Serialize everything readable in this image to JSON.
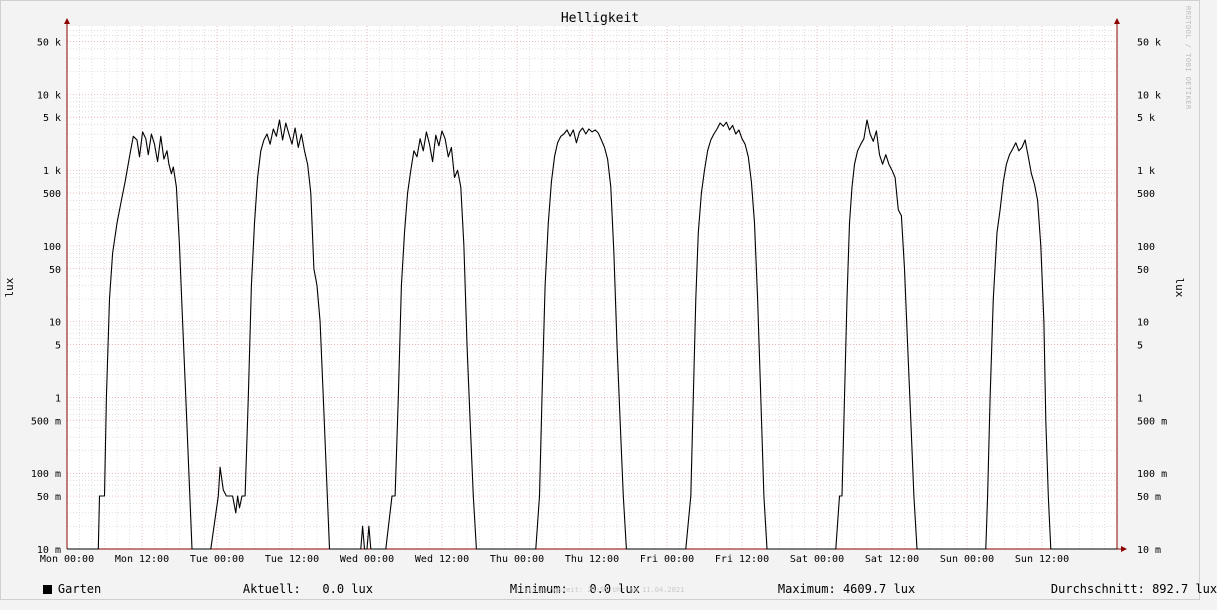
{
  "title": "Helligkeit",
  "watermark": "RRDTOOL / TOBI OETIKER",
  "ylabel_left": "lux",
  "ylabel_right": "lux",
  "legend": {
    "series_name": "Garten",
    "current_label": "Aktuell:",
    "current_value": "0.0 lux",
    "min_label": "Minimum:",
    "min_value": "0.0 lux",
    "max_label": "Maximum:",
    "max_value": "4609.7 lux",
    "avg_label": "Durchschnitt:",
    "avg_value": "892.7 lux"
  },
  "footer": "Erstellungszeit: 23:55 Uhr am 11.04.2021",
  "colors": {
    "line": "#000000",
    "grid_major": "#e8a0a0",
    "grid_minor": "#cccccc",
    "plot_bg": "#ffffff",
    "axis": "#8b0000"
  },
  "chart_data": {
    "type": "line",
    "title": "Helligkeit",
    "ylabel": "lux",
    "yscale": "log",
    "ylim": [
      0.01,
      80000
    ],
    "xlim_hours": [
      0,
      168
    ],
    "y_ticks": [
      {
        "value": 50000,
        "label": "50 k"
      },
      {
        "value": 10000,
        "label": "10 k"
      },
      {
        "value": 5000,
        "label": "5 k"
      },
      {
        "value": 1000,
        "label": "1 k"
      },
      {
        "value": 500,
        "label": "500"
      },
      {
        "value": 100,
        "label": "100"
      },
      {
        "value": 50,
        "label": "50"
      },
      {
        "value": 10,
        "label": "10"
      },
      {
        "value": 5,
        "label": "5"
      },
      {
        "value": 1,
        "label": "1"
      },
      {
        "value": 0.5,
        "label": "500 m"
      },
      {
        "value": 0.1,
        "label": "100 m"
      },
      {
        "value": 0.05,
        "label": "50 m"
      },
      {
        "value": 0.01,
        "label": "10 m"
      }
    ],
    "x_ticks": [
      {
        "hour": 0,
        "label": "Mon 00:00"
      },
      {
        "hour": 12,
        "label": "Mon 12:00"
      },
      {
        "hour": 24,
        "label": "Tue 00:00"
      },
      {
        "hour": 36,
        "label": "Tue 12:00"
      },
      {
        "hour": 48,
        "label": "Wed 00:00"
      },
      {
        "hour": 60,
        "label": "Wed 12:00"
      },
      {
        "hour": 72,
        "label": "Thu 00:00"
      },
      {
        "hour": 84,
        "label": "Thu 12:00"
      },
      {
        "hour": 96,
        "label": "Fri 00:00"
      },
      {
        "hour": 108,
        "label": "Fri 12:00"
      },
      {
        "hour": 120,
        "label": "Sat 00:00"
      },
      {
        "hour": 132,
        "label": "Sat 12:00"
      },
      {
        "hour": 144,
        "label": "Sun 00:00"
      },
      {
        "hour": 156,
        "label": "Sun 12:00"
      }
    ],
    "series": [
      {
        "name": "Garten",
        "points": [
          [
            0,
            0.01
          ],
          [
            5,
            0.01
          ],
          [
            5.2,
            0.05
          ],
          [
            6,
            0.05
          ],
          [
            6.3,
            1
          ],
          [
            6.8,
            20
          ],
          [
            7.3,
            80
          ],
          [
            8,
            200
          ],
          [
            8.7,
            400
          ],
          [
            9.3,
            700
          ],
          [
            10,
            1500
          ],
          [
            10.6,
            2800
          ],
          [
            11.2,
            2500
          ],
          [
            11.6,
            1500
          ],
          [
            12.1,
            3200
          ],
          [
            12.6,
            2600
          ],
          [
            13,
            1600
          ],
          [
            13.5,
            3000
          ],
          [
            14,
            2200
          ],
          [
            14.5,
            1300
          ],
          [
            15,
            2800
          ],
          [
            15.5,
            1400
          ],
          [
            16,
            1800
          ],
          [
            16.3,
            1200
          ],
          [
            16.7,
            900
          ],
          [
            17,
            1100
          ],
          [
            17.5,
            600
          ],
          [
            18,
            100
          ],
          [
            18.5,
            10
          ],
          [
            19,
            1
          ],
          [
            19.5,
            0.1
          ],
          [
            20,
            0.01
          ],
          [
            23,
            0.01
          ],
          [
            24.2,
            0.05
          ],
          [
            24.5,
            0.12
          ],
          [
            25,
            0.06
          ],
          [
            25.5,
            0.05
          ],
          [
            26.5,
            0.05
          ],
          [
            27,
            0.03
          ],
          [
            27.3,
            0.05
          ],
          [
            27.6,
            0.035
          ],
          [
            28,
            0.05
          ],
          [
            28.5,
            0.05
          ],
          [
            29,
            1
          ],
          [
            29.5,
            30
          ],
          [
            30,
            200
          ],
          [
            30.5,
            800
          ],
          [
            31,
            1800
          ],
          [
            31.5,
            2500
          ],
          [
            32,
            3000
          ],
          [
            32.5,
            2200
          ],
          [
            33,
            3500
          ],
          [
            33.5,
            2800
          ],
          [
            34,
            4600
          ],
          [
            34.5,
            2500
          ],
          [
            35,
            4200
          ],
          [
            35.5,
            3000
          ],
          [
            36,
            2200
          ],
          [
            36.5,
            3600
          ],
          [
            37,
            2000
          ],
          [
            37.5,
            3000
          ],
          [
            38,
            1800
          ],
          [
            38.5,
            1200
          ],
          [
            39,
            500
          ],
          [
            39.5,
            50
          ],
          [
            40,
            30
          ],
          [
            40.5,
            10
          ],
          [
            41,
            1
          ],
          [
            42,
            0.01
          ],
          [
            47,
            0.01
          ],
          [
            47.3,
            0.02
          ],
          [
            47.6,
            0.01
          ],
          [
            48,
            0.01
          ],
          [
            48.3,
            0.02
          ],
          [
            48.6,
            0.01
          ],
          [
            51,
            0.01
          ],
          [
            52,
            0.05
          ],
          [
            52.5,
            0.05
          ],
          [
            53,
            1
          ],
          [
            53.5,
            30
          ],
          [
            54,
            150
          ],
          [
            54.5,
            500
          ],
          [
            55,
            1000
          ],
          [
            55.5,
            1800
          ],
          [
            56,
            1500
          ],
          [
            56.5,
            2600
          ],
          [
            57,
            1800
          ],
          [
            57.5,
            3200
          ],
          [
            58,
            2200
          ],
          [
            58.5,
            1300
          ],
          [
            59,
            2900
          ],
          [
            59.5,
            2100
          ],
          [
            60,
            3300
          ],
          [
            60.5,
            2600
          ],
          [
            61,
            1500
          ],
          [
            61.5,
            2000
          ],
          [
            62,
            800
          ],
          [
            62.5,
            1000
          ],
          [
            63,
            600
          ],
          [
            63.5,
            100
          ],
          [
            64,
            5
          ],
          [
            64.5,
            0.5
          ],
          [
            65,
            0.05
          ],
          [
            65.5,
            0.01
          ],
          [
            75,
            0.01
          ],
          [
            75.6,
            0.05
          ],
          [
            76,
            1
          ],
          [
            76.5,
            30
          ],
          [
            77,
            200
          ],
          [
            77.5,
            700
          ],
          [
            78,
            1500
          ],
          [
            78.5,
            2300
          ],
          [
            79,
            2800
          ],
          [
            79.5,
            3000
          ],
          [
            80,
            3400
          ],
          [
            80.5,
            2800
          ],
          [
            81,
            3400
          ],
          [
            81.5,
            2300
          ],
          [
            82,
            3200
          ],
          [
            82.5,
            3600
          ],
          [
            83,
            3000
          ],
          [
            83.5,
            3500
          ],
          [
            84,
            3200
          ],
          [
            84.5,
            3400
          ],
          [
            85,
            3100
          ],
          [
            85.5,
            2500
          ],
          [
            86,
            2000
          ],
          [
            86.5,
            1400
          ],
          [
            87,
            600
          ],
          [
            87.5,
            80
          ],
          [
            88,
            5
          ],
          [
            88.5,
            0.5
          ],
          [
            89,
            0.05
          ],
          [
            89.5,
            0.01
          ],
          [
            99,
            0.01
          ],
          [
            99.8,
            0.05
          ],
          [
            100.2,
            1
          ],
          [
            100.6,
            20
          ],
          [
            101,
            150
          ],
          [
            101.5,
            500
          ],
          [
            102,
            1000
          ],
          [
            102.5,
            1800
          ],
          [
            103,
            2500
          ],
          [
            103.5,
            3000
          ],
          [
            104,
            3500
          ],
          [
            104.5,
            4200
          ],
          [
            105,
            3800
          ],
          [
            105.5,
            4300
          ],
          [
            106,
            3400
          ],
          [
            106.5,
            3900
          ],
          [
            107,
            3000
          ],
          [
            107.5,
            3400
          ],
          [
            108,
            2600
          ],
          [
            108.5,
            2200
          ],
          [
            109,
            1500
          ],
          [
            109.5,
            700
          ],
          [
            110,
            200
          ],
          [
            110.5,
            20
          ],
          [
            111,
            1
          ],
          [
            111.5,
            0.05
          ],
          [
            112,
            0.01
          ],
          [
            123,
            0.01
          ],
          [
            123.6,
            0.05
          ],
          [
            124,
            0.05
          ],
          [
            124.4,
            1
          ],
          [
            124.8,
            20
          ],
          [
            125.2,
            200
          ],
          [
            125.6,
            600
          ],
          [
            126,
            1200
          ],
          [
            126.5,
            1800
          ],
          [
            127,
            2200
          ],
          [
            127.5,
            2600
          ],
          [
            128,
            4600
          ],
          [
            128.5,
            3000
          ],
          [
            129,
            2400
          ],
          [
            129.5,
            3300
          ],
          [
            130,
            1600
          ],
          [
            130.5,
            1200
          ],
          [
            131,
            1600
          ],
          [
            131.5,
            1200
          ],
          [
            132,
            1000
          ],
          [
            132.5,
            800
          ],
          [
            133,
            300
          ],
          [
            133.5,
            250
          ],
          [
            134,
            50
          ],
          [
            134.5,
            5
          ],
          [
            135,
            0.5
          ],
          [
            135.5,
            0.05
          ],
          [
            136,
            0.01
          ],
          [
            147,
            0.01
          ],
          [
            147.3,
            0.05
          ],
          [
            147.7,
            1
          ],
          [
            148.2,
            20
          ],
          [
            148.8,
            150
          ],
          [
            149.3,
            300
          ],
          [
            149.8,
            700
          ],
          [
            150.3,
            1200
          ],
          [
            150.8,
            1600
          ],
          [
            151.3,
            1900
          ],
          [
            151.8,
            2300
          ],
          [
            152.3,
            1800
          ],
          [
            152.8,
            2000
          ],
          [
            153.3,
            2500
          ],
          [
            153.8,
            1500
          ],
          [
            154.3,
            900
          ],
          [
            154.8,
            650
          ],
          [
            155.3,
            400
          ],
          [
            155.8,
            100
          ],
          [
            156.3,
            10
          ],
          [
            156.6,
            0.5
          ],
          [
            157,
            0.05
          ],
          [
            157.4,
            0.01
          ],
          [
            168,
            0.01
          ]
        ]
      }
    ]
  }
}
